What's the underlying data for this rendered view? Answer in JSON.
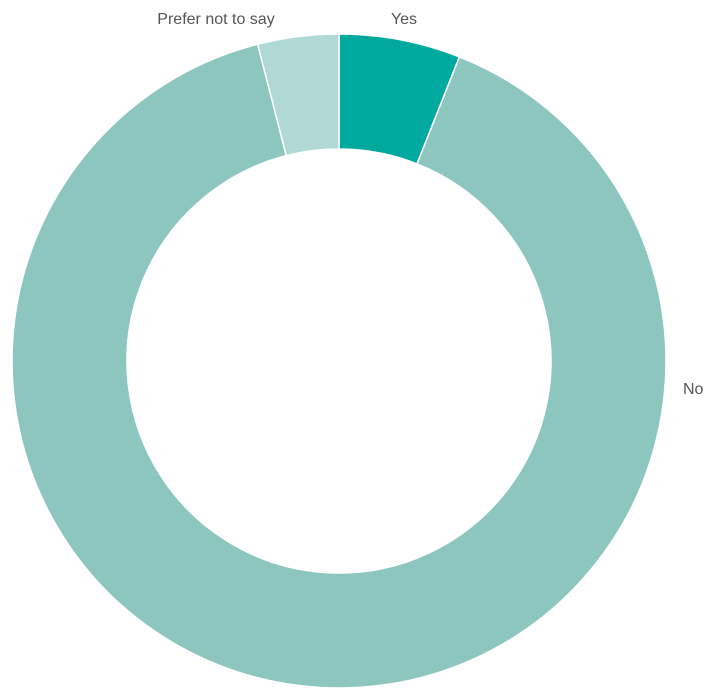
{
  "chart_data": {
    "type": "donut",
    "categories": [
      "Yes",
      "No",
      "Prefer not to say"
    ],
    "values": [
      6,
      90,
      4
    ],
    "colors": [
      "#00a99d",
      "#8cc6be",
      "#b0d8d4"
    ]
  }
}
